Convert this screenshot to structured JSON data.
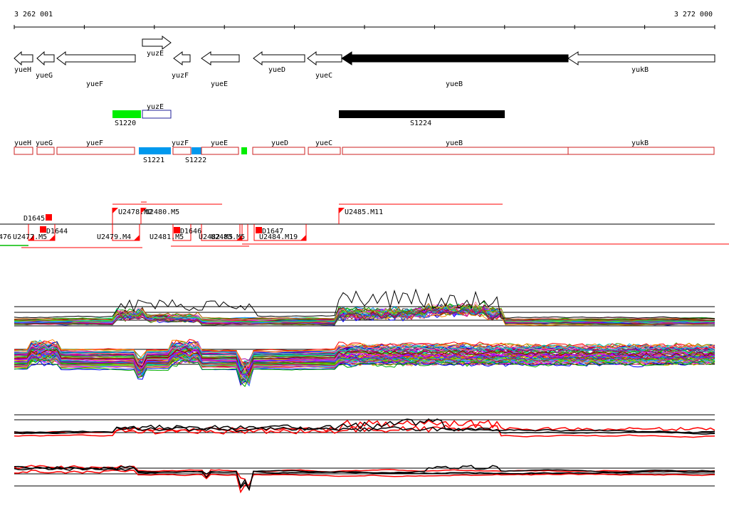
{
  "coords": {
    "start": "3 262 001",
    "end": "3 272 000"
  },
  "genes": [
    {
      "label": "yueH"
    },
    {
      "label": "yueG"
    },
    {
      "label": "yueF"
    },
    {
      "label": "yuzE"
    },
    {
      "label": "yuzF"
    },
    {
      "label": "yueE"
    },
    {
      "label": "yueD"
    },
    {
      "label": "yueC"
    },
    {
      "label": "yueB"
    },
    {
      "label": "yukB"
    }
  ],
  "segments": [
    {
      "label": "S1220",
      "color": "#00ee00"
    },
    {
      "label": "yuzE",
      "color": "#ffffff"
    },
    {
      "label": "S1224",
      "color": "#000000"
    }
  ],
  "cds": [
    {
      "label": "yueH"
    },
    {
      "label": "yueG"
    },
    {
      "label": "yueF"
    },
    {
      "label": "yuzF"
    },
    {
      "label": "yueE"
    },
    {
      "label": "yueD"
    },
    {
      "label": "yueC"
    },
    {
      "label": "yueB"
    },
    {
      "label": "yukB"
    }
  ],
  "cds_extra": [
    {
      "label": "S1221",
      "color": "#0099ee"
    },
    {
      "label": "S1222",
      "color": "#0099ee"
    },
    {
      "label": "",
      "color": "#00ee00"
    }
  ],
  "tus": [
    {
      "label": "D1645"
    },
    {
      "label": "D1644"
    },
    {
      "label": "U2478.M2"
    },
    {
      "label": "U2480.M5"
    },
    {
      "label": "U2485.M11"
    },
    {
      "label": "476"
    },
    {
      "label": "U2477.M5"
    },
    {
      "label": "U2479.M4"
    },
    {
      "label": "U2481.M5"
    },
    {
      "label": "D1646"
    },
    {
      "label": "U2482.M5"
    },
    {
      "label": "U2483.M5"
    },
    {
      "label": "D1647"
    },
    {
      "label": "U2484.M19"
    }
  ],
  "colors": {
    "accent": "#ff0000",
    "gene_fill": "#ffffff",
    "gene_stroke": "#000000"
  }
}
